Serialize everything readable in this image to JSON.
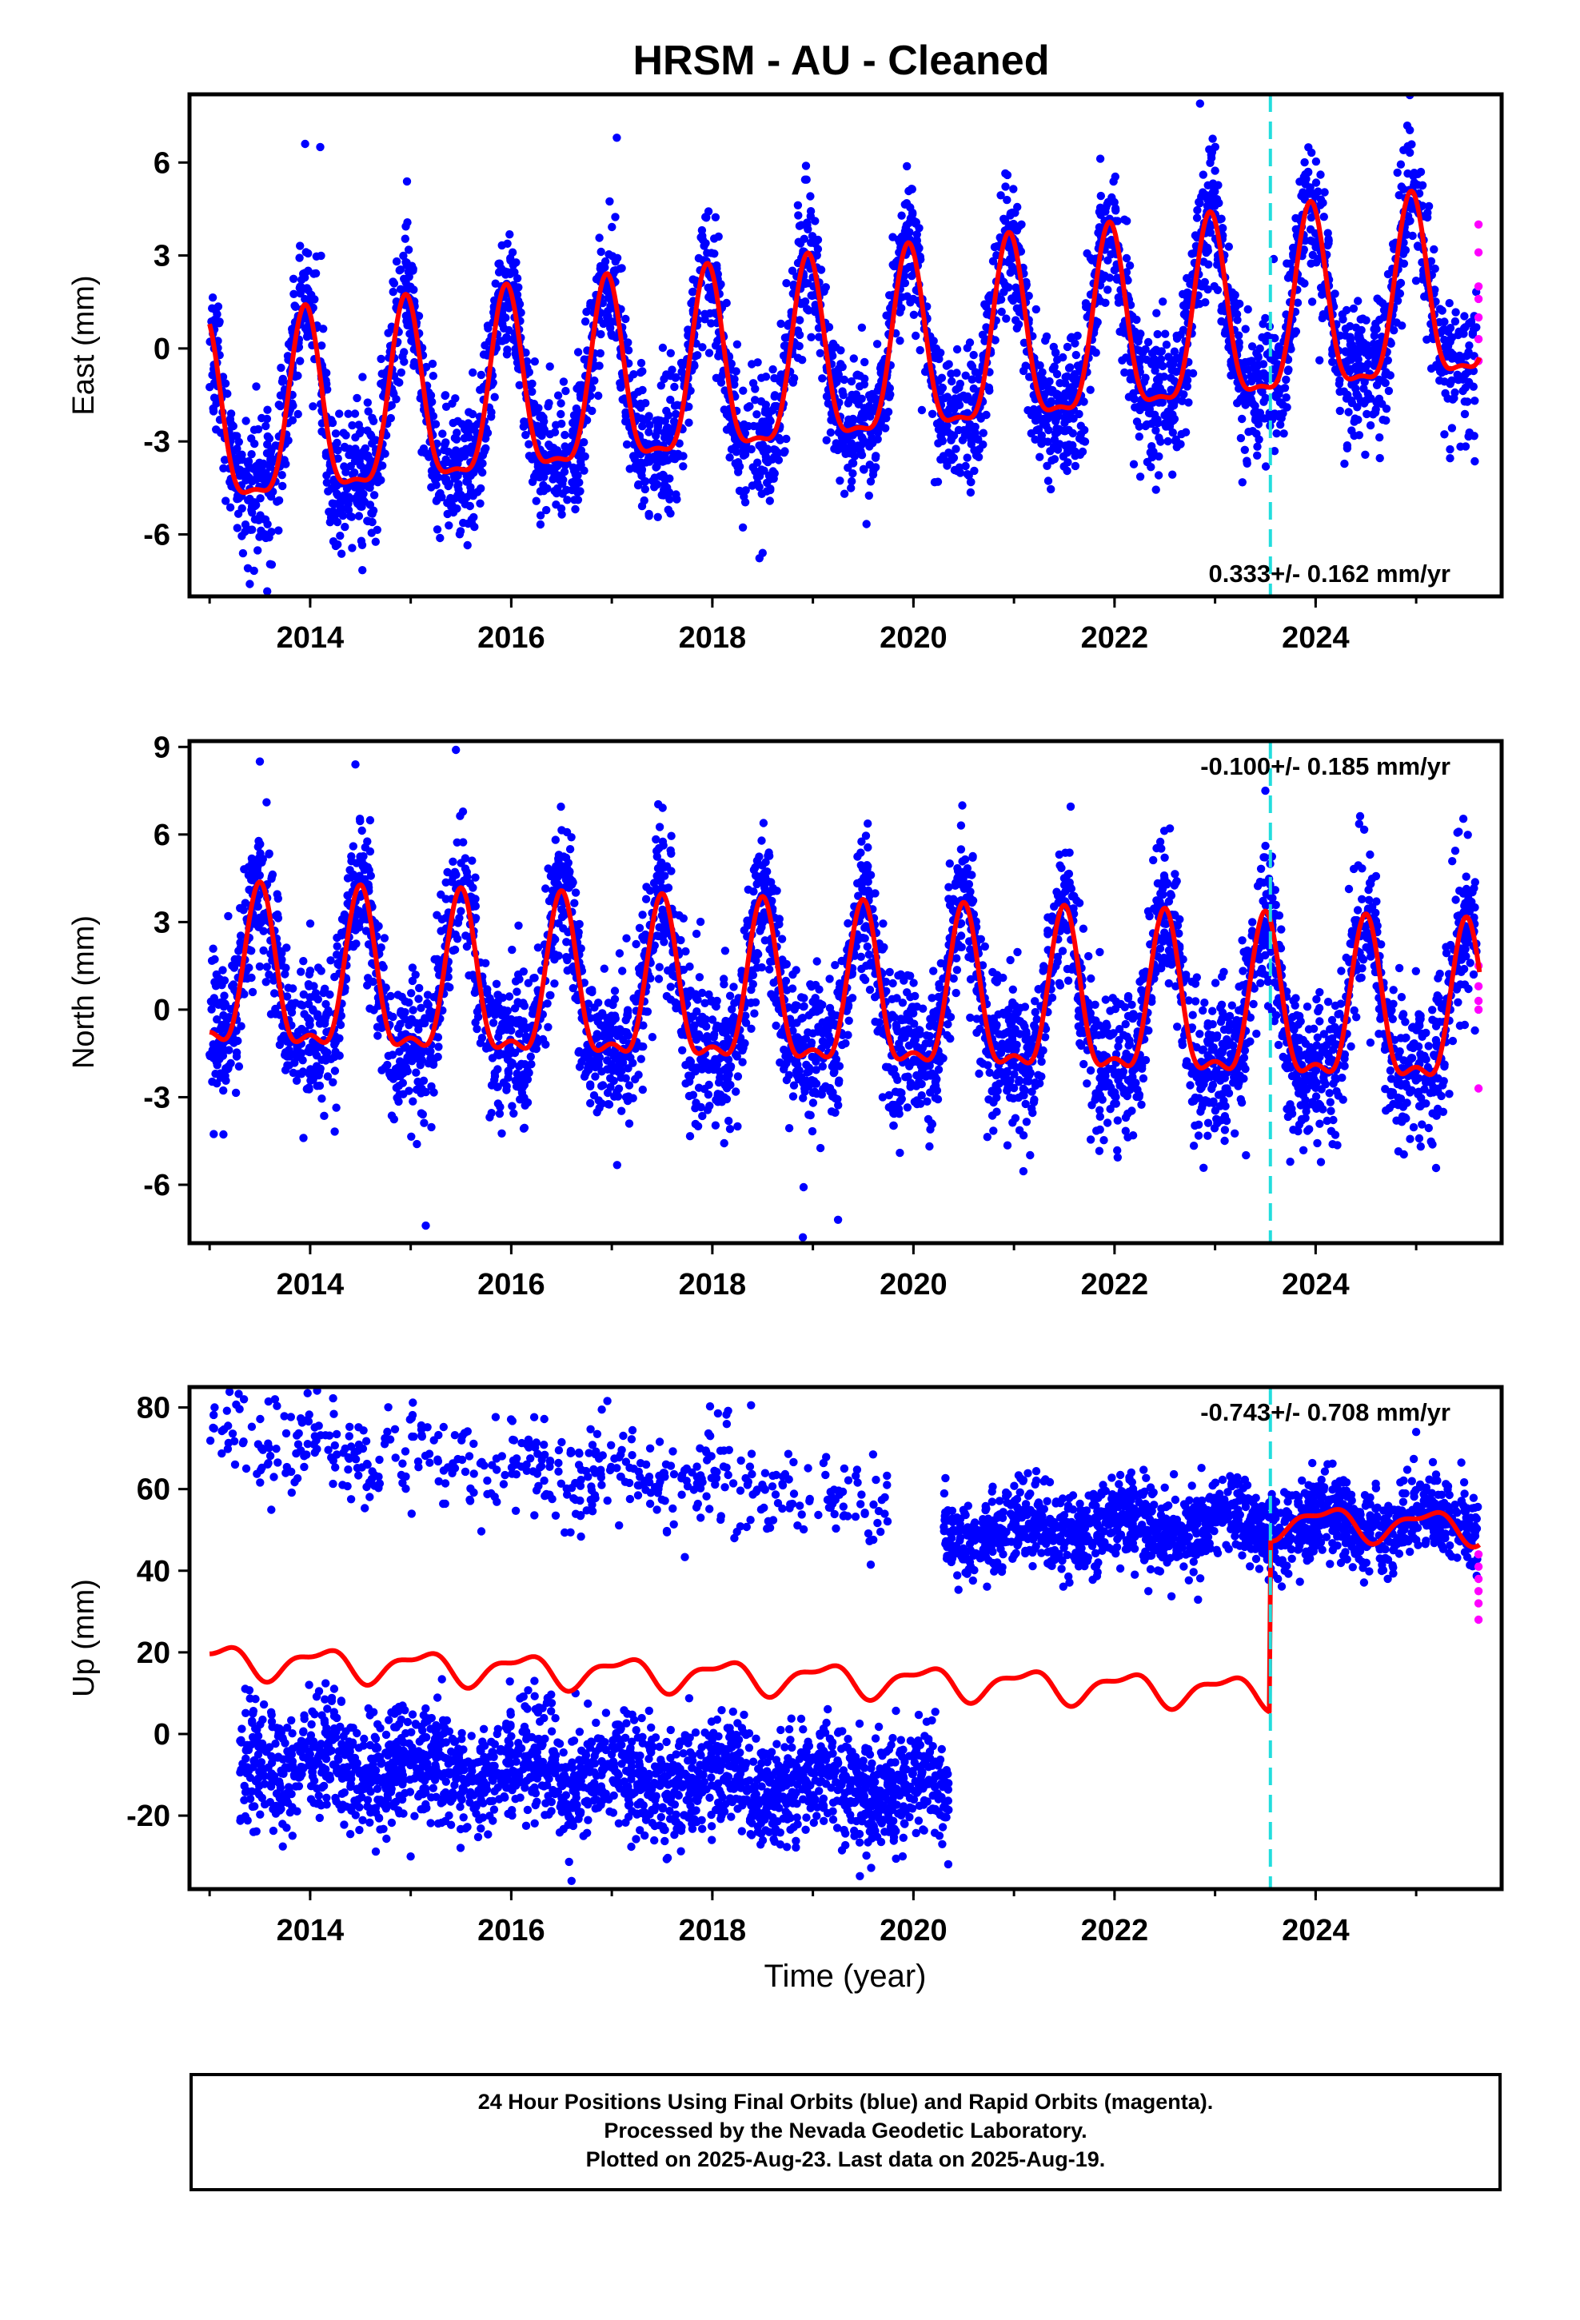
{
  "title": "HRSM  - AU - Cleaned",
  "xlabel": "Time (year)",
  "footer": {
    "line1": "24 Hour Positions Using Final Orbits (blue) and Rapid Orbits (magenta).",
    "line2": "Processed by the Nevada Geodetic Laboratory.",
    "line3": "Plotted on 2025-Aug-23. Last data on 2025-Aug-19."
  },
  "colors": {
    "final_orbits": "#0000ff",
    "rapid_orbits": "#ff00ff",
    "model": "#ff0000",
    "equipment_change": "#22dddd",
    "frame": "#000000"
  },
  "chart_data": [
    {
      "type": "scatter",
      "ylabel": "East (mm)",
      "xlim": [
        2012.8,
        2025.85
      ],
      "ylim": [
        -8,
        8.2
      ],
      "xticks": [
        2014,
        2016,
        2018,
        2020,
        2022,
        2024
      ],
      "yticks": [
        -6,
        -3,
        0,
        3,
        6
      ],
      "rate_label": "0.333+/- 0.162 mm/yr",
      "rate_position": "bottom-right",
      "equipment_change_year": 2023.55,
      "data_start": 2013.0,
      "data_end": 2025.63,
      "rapid_start": 2025.6,
      "model": {
        "offset": -0.6,
        "trend": 0.333,
        "ref_year": 2019.3,
        "annual_amp": 2.9,
        "annual_phase": 0.95,
        "semiannual_amp": 0.9,
        "semiannual_phase": 0.45,
        "jump_year": 2023.55,
        "jump": 0.0
      },
      "scatter_sd": 1.1,
      "notable_points": [
        [
          2013.95,
          6.6
        ],
        [
          2014.1,
          6.5
        ],
        [
          2017.05,
          6.8
        ],
        [
          2022.85,
          7.9
        ],
        [
          2013.4,
          -7.6
        ],
        [
          2018.5,
          -6.6
        ]
      ],
      "rapid_points": [
        [
          2025.62,
          4.0
        ],
        [
          2025.62,
          3.1
        ],
        [
          2025.62,
          2.0
        ],
        [
          2025.62,
          1.6
        ],
        [
          2025.62,
          1.0
        ],
        [
          2025.62,
          0.3
        ],
        [
          2025.62,
          -0.4
        ]
      ]
    },
    {
      "type": "scatter",
      "ylabel": "North (mm)",
      "xlim": [
        2012.8,
        2025.85
      ],
      "ylim": [
        -8,
        9.2
      ],
      "xticks": [
        2014,
        2016,
        2018,
        2020,
        2022,
        2024
      ],
      "yticks": [
        -6,
        -3,
        0,
        3,
        6,
        9
      ],
      "rate_label": "-0.100+/- 0.185 mm/yr",
      "rate_position": "top-right",
      "equipment_change_year": 2023.55,
      "data_start": 2013.0,
      "data_end": 2025.63,
      "rapid_start": 2025.6,
      "model": {
        "offset": 0.2,
        "trend": -0.1,
        "ref_year": 2019.3,
        "annual_amp": 2.6,
        "annual_phase": 0.5,
        "semiannual_amp": 1.0,
        "semiannual_phase": 0.5,
        "jump_year": 2023.55,
        "jump": 0.0
      },
      "scatter_sd": 1.3,
      "notable_points": [
        [
          2015.45,
          8.9
        ],
        [
          2013.5,
          8.5
        ],
        [
          2014.45,
          8.4
        ],
        [
          2023.5,
          7.5
        ],
        [
          2015.15,
          -7.4
        ],
        [
          2018.9,
          -7.8
        ],
        [
          2019.25,
          -7.2
        ]
      ],
      "rapid_points": [
        [
          2025.62,
          1.5
        ],
        [
          2025.62,
          0.8
        ],
        [
          2025.62,
          0.3
        ],
        [
          2025.62,
          0.0
        ],
        [
          2025.62,
          -2.7
        ]
      ]
    },
    {
      "type": "scatter",
      "ylabel": "Up (mm)",
      "xlim": [
        2012.8,
        2025.85
      ],
      "ylim": [
        -38,
        85
      ],
      "xticks": [
        2014,
        2016,
        2018,
        2020,
        2022,
        2024
      ],
      "yticks": [
        -20,
        0,
        20,
        40,
        60,
        80
      ],
      "rate_label": "-0.743+/- 0.708 mm/yr",
      "rate_position": "top-right",
      "equipment_change_year": 2023.55,
      "data_start": 2013.0,
      "data_end": 2025.63,
      "rapid_start": 2025.6,
      "model": {
        "offset": 18,
        "trend": -0.743,
        "ref_year": 2013.0,
        "annual_amp": 3.5,
        "annual_phase": 0.1,
        "semiannual_amp": 1.5,
        "semiannual_phase": 0.3,
        "jump_year": 2023.55,
        "jump": 42
      },
      "clusters": [
        {
          "label": "upper-sparse",
          "x": [
            2013.0,
            2019.75
          ],
          "y_start": 73,
          "y_end": 57,
          "sd": 6,
          "density": 0.25
        },
        {
          "label": "lower-dense",
          "x": [
            2013.3,
            2020.35
          ],
          "y_start": -6,
          "y_end": -14,
          "sd": 7,
          "density": 1.0
        },
        {
          "label": "upper-dense",
          "x": [
            2020.3,
            2025.62
          ],
          "y_start": 50,
          "y_end": 52,
          "sd": 5,
          "density": 1.0
        }
      ],
      "notable_points": [
        [
          2013.65,
          82
        ],
        [
          2013.05,
          80
        ],
        [
          2025.0,
          74
        ],
        [
          2016.6,
          -36
        ],
        [
          2015.0,
          -30
        ]
      ],
      "rapid_points": [
        [
          2025.62,
          44
        ],
        [
          2025.62,
          41
        ],
        [
          2025.62,
          38
        ],
        [
          2025.62,
          35
        ],
        [
          2025.62,
          32
        ],
        [
          2025.62,
          28
        ]
      ]
    }
  ]
}
